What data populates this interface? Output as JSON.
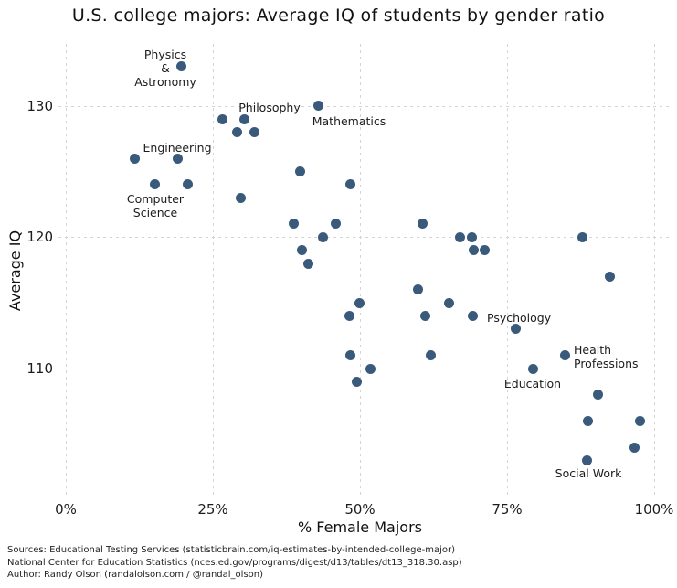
{
  "title": "U.S. college majors: Average IQ of students by gender ratio",
  "chart_data": {
    "type": "scatter",
    "title": "U.S. college majors: Average IQ of students by gender ratio",
    "xlabel": "% Female Majors",
    "ylabel": "Average IQ",
    "xlim": [
      -2,
      103
    ],
    "ylim": [
      100,
      135
    ],
    "grid": "dashed",
    "dot_color": "#3a5a7c",
    "x_tick_values": [
      0,
      25,
      50,
      75,
      100
    ],
    "x_tick_labels": [
      "0%",
      "25%",
      "50%",
      "75%",
      "100%"
    ],
    "y_tick_values": [
      110,
      120,
      130
    ],
    "y_tick_labels": [
      "110",
      "120",
      "130"
    ],
    "points": [
      {
        "pct": 19.6,
        "iq": 133,
        "label": "Physics & Astronomy"
      },
      {
        "pct": 26.7,
        "iq": 129
      },
      {
        "pct": 30.4,
        "iq": 129,
        "label": "Philosophy"
      },
      {
        "pct": 29.1,
        "iq": 128
      },
      {
        "pct": 32.0,
        "iq": 128
      },
      {
        "pct": 42.9,
        "iq": 130,
        "label": "Mathematics"
      },
      {
        "pct": 11.8,
        "iq": 126
      },
      {
        "pct": 19.0,
        "iq": 126,
        "label": "Engineering"
      },
      {
        "pct": 15.1,
        "iq": 124,
        "label": "Computer Science"
      },
      {
        "pct": 20.7,
        "iq": 124
      },
      {
        "pct": 39.9,
        "iq": 125
      },
      {
        "pct": 29.8,
        "iq": 123
      },
      {
        "pct": 48.4,
        "iq": 124
      },
      {
        "pct": 38.7,
        "iq": 121
      },
      {
        "pct": 45.9,
        "iq": 121
      },
      {
        "pct": 43.7,
        "iq": 120
      },
      {
        "pct": 40.1,
        "iq": 119
      },
      {
        "pct": 41.3,
        "iq": 118
      },
      {
        "pct": 60.6,
        "iq": 121
      },
      {
        "pct": 67.0,
        "iq": 120
      },
      {
        "pct": 69.0,
        "iq": 120
      },
      {
        "pct": 69.4,
        "iq": 119
      },
      {
        "pct": 71.2,
        "iq": 119
      },
      {
        "pct": 87.8,
        "iq": 120
      },
      {
        "pct": 92.5,
        "iq": 117
      },
      {
        "pct": 59.8,
        "iq": 116
      },
      {
        "pct": 49.9,
        "iq": 115
      },
      {
        "pct": 48.2,
        "iq": 114
      },
      {
        "pct": 65.2,
        "iq": 115
      },
      {
        "pct": 61.1,
        "iq": 114
      },
      {
        "pct": 69.1,
        "iq": 114
      },
      {
        "pct": 76.5,
        "iq": 113,
        "label": "Psychology"
      },
      {
        "pct": 48.3,
        "iq": 111
      },
      {
        "pct": 62.0,
        "iq": 111
      },
      {
        "pct": 51.8,
        "iq": 110
      },
      {
        "pct": 49.4,
        "iq": 109
      },
      {
        "pct": 84.8,
        "iq": 111,
        "label": "Health Professions"
      },
      {
        "pct": 79.5,
        "iq": 110,
        "label": "Education"
      },
      {
        "pct": 90.5,
        "iq": 108
      },
      {
        "pct": 88.7,
        "iq": 106
      },
      {
        "pct": 97.6,
        "iq": 106
      },
      {
        "pct": 96.6,
        "iq": 104
      },
      {
        "pct": 88.6,
        "iq": 103,
        "label": "Social Work"
      }
    ],
    "annotations": [
      {
        "key": "physics-astronomy",
        "lines": [
          "Physics",
          "&",
          "Astronomy"
        ]
      },
      {
        "key": "philosophy",
        "lines": [
          "Philosophy"
        ]
      },
      {
        "key": "mathematics",
        "lines": [
          "Mathematics"
        ]
      },
      {
        "key": "engineering",
        "lines": [
          "Engineering"
        ]
      },
      {
        "key": "computer-science",
        "lines": [
          "Computer",
          "Science"
        ]
      },
      {
        "key": "psychology",
        "lines": [
          "Psychology"
        ]
      },
      {
        "key": "health-professions",
        "lines": [
          "Health",
          "Professions"
        ]
      },
      {
        "key": "education",
        "lines": [
          "Education"
        ]
      },
      {
        "key": "social-work",
        "lines": [
          "Social Work"
        ]
      }
    ]
  },
  "footer": {
    "sources": [
      "Sources: Educational Testing Services (statisticbrain.com/iq-estimates-by-intended-college-major)",
      "National Center for Education Statistics (nces.ed.gov/programs/digest/d13/tables/dt13_318.30.asp)",
      "Author: Randy Olson (randalolson.com / @randal_olson)"
    ]
  }
}
